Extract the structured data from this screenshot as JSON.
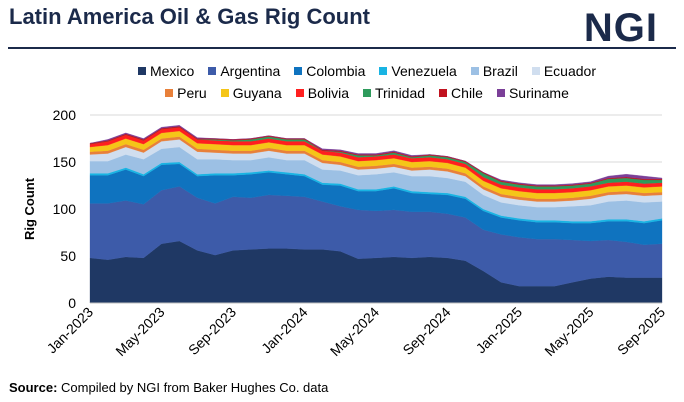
{
  "header": {
    "title": "Latin America Oil & Gas Rig Count",
    "brand": "NGI"
  },
  "footer": {
    "source_label": "Source:",
    "source_text": " Compiled by NGI from Baker Hughes Co. data"
  },
  "chart_data": {
    "type": "area",
    "stacked": true,
    "ylabel": "Rig Count",
    "xlabel": "",
    "ylim": [
      0,
      200
    ],
    "yticks": [
      0,
      50,
      100,
      150,
      200
    ],
    "x": [
      "Jan-2023",
      "Feb-2023",
      "Mar-2023",
      "Apr-2023",
      "May-2023",
      "Jun-2023",
      "Jul-2023",
      "Aug-2023",
      "Sep-2023",
      "Oct-2023",
      "Nov-2023",
      "Dec-2023",
      "Jan-2024",
      "Feb-2024",
      "Mar-2024",
      "Apr-2024",
      "May-2024",
      "Jun-2024",
      "Jul-2024",
      "Aug-2024",
      "Sep-2024",
      "Oct-2024",
      "Nov-2024",
      "Dec-2024",
      "Jan-2025",
      "Feb-2025",
      "Mar-2025",
      "Apr-2025",
      "May-2025",
      "Jun-2025",
      "Jul-2025",
      "Aug-2025",
      "Sep-2025"
    ],
    "xtick_labels": [
      "Jan-2023",
      "May-2023",
      "Sep-2023",
      "Jan-2024",
      "May-2024",
      "Sep-2024",
      "Jan-2025",
      "May-2025",
      "Sep-2025"
    ],
    "grid": "horizontal",
    "legend_position": "top",
    "series": [
      {
        "name": "Mexico",
        "color": "#1f3864",
        "values": [
          48,
          46,
          49,
          48,
          63,
          66,
          56,
          51,
          56,
          57,
          58,
          58,
          57,
          57,
          55,
          47,
          48,
          49,
          48,
          49,
          48,
          45,
          34,
          22,
          18,
          18,
          18,
          22,
          26,
          28,
          27,
          27,
          27
        ]
      },
      {
        "name": "Argentina",
        "color": "#3d5ba9",
        "values": [
          58,
          60,
          60,
          57,
          57,
          58,
          56,
          55,
          57,
          55,
          57,
          56,
          56,
          51,
          48,
          52,
          50,
          50,
          49,
          48,
          47,
          46,
          44,
          51,
          52,
          50,
          50,
          45,
          40,
          39,
          38,
          35,
          36
        ]
      },
      {
        "name": "Colombia",
        "color": "#0f73bf",
        "values": [
          30,
          30,
          33,
          30,
          27,
          24,
          23,
          30,
          23,
          25,
          24,
          23,
          22,
          18,
          22,
          20,
          21,
          23,
          20,
          19,
          20,
          20,
          20,
          18,
          18,
          18,
          18,
          18,
          19,
          20,
          22,
          23,
          25
        ]
      },
      {
        "name": "Venezuela",
        "color": "#19b4e3",
        "values": [
          2,
          2,
          2,
          2,
          2,
          2,
          2,
          2,
          2,
          2,
          2,
          2,
          2,
          2,
          2,
          2,
          2,
          2,
          2,
          2,
          2,
          2,
          2,
          2,
          2,
          2,
          2,
          2,
          2,
          2,
          2,
          2,
          2
        ]
      },
      {
        "name": "Brazil",
        "color": "#9cc0e4",
        "values": [
          13,
          13,
          14,
          16,
          15,
          16,
          16,
          15,
          14,
          13,
          14,
          13,
          15,
          14,
          14,
          15,
          16,
          15,
          16,
          17,
          16,
          16,
          15,
          14,
          14,
          14,
          14,
          16,
          17,
          19,
          20,
          20,
          18
        ]
      },
      {
        "name": "Ecuador",
        "color": "#d0deef",
        "values": [
          7,
          8,
          8,
          7,
          8,
          8,
          8,
          7,
          7,
          7,
          7,
          7,
          7,
          7,
          6,
          6,
          6,
          6,
          6,
          7,
          7,
          6,
          6,
          6,
          6,
          6,
          6,
          6,
          7,
          7,
          7,
          7,
          7
        ]
      },
      {
        "name": "Peru",
        "color": "#e8803a",
        "values": [
          3,
          3,
          3,
          3,
          3,
          3,
          3,
          3,
          3,
          3,
          3,
          3,
          3,
          3,
          3,
          3,
          3,
          3,
          3,
          3,
          3,
          3,
          3,
          3,
          3,
          3,
          3,
          3,
          3,
          3,
          3,
          3,
          3
        ]
      },
      {
        "name": "Guyana",
        "color": "#f5c518",
        "values": [
          5,
          6,
          6,
          6,
          6,
          6,
          6,
          6,
          6,
          6,
          6,
          6,
          6,
          6,
          6,
          6,
          6,
          6,
          6,
          6,
          6,
          6,
          6,
          6,
          6,
          6,
          6,
          6,
          6,
          6,
          6,
          6,
          6
        ]
      },
      {
        "name": "Bolivia",
        "color": "#ff1f1f",
        "values": [
          3,
          4,
          4,
          4,
          4,
          4,
          4,
          4,
          4,
          4,
          4,
          4,
          4,
          4,
          4,
          4,
          4,
          4,
          4,
          4,
          4,
          4,
          4,
          4,
          4,
          4,
          4,
          4,
          4,
          4,
          4,
          4,
          4
        ]
      },
      {
        "name": "Trinidad",
        "color": "#2e9b5c",
        "values": [
          0,
          0,
          0,
          0,
          0,
          0,
          0,
          1,
          1,
          2,
          2,
          2,
          2,
          0,
          1,
          2,
          1,
          2,
          1,
          2,
          2,
          2,
          4,
          3,
          3,
          3,
          3,
          3,
          3,
          4,
          4,
          4,
          3
        ]
      },
      {
        "name": "Chile",
        "color": "#c1121f",
        "values": [
          1,
          1,
          1,
          1,
          1,
          1,
          1,
          1,
          1,
          1,
          1,
          1,
          1,
          1,
          1,
          1,
          1,
          1,
          1,
          1,
          1,
          1,
          1,
          1,
          1,
          1,
          1,
          1,
          1,
          1,
          1,
          1,
          1
        ]
      },
      {
        "name": "Suriname",
        "color": "#7b3f98",
        "values": [
          0,
          1,
          1,
          1,
          1,
          1,
          1,
          0,
          0,
          0,
          0,
          0,
          0,
          1,
          1,
          1,
          1,
          1,
          1,
          0,
          0,
          0,
          0,
          1,
          1,
          1,
          1,
          1,
          1,
          2,
          3,
          3,
          1
        ]
      }
    ]
  }
}
